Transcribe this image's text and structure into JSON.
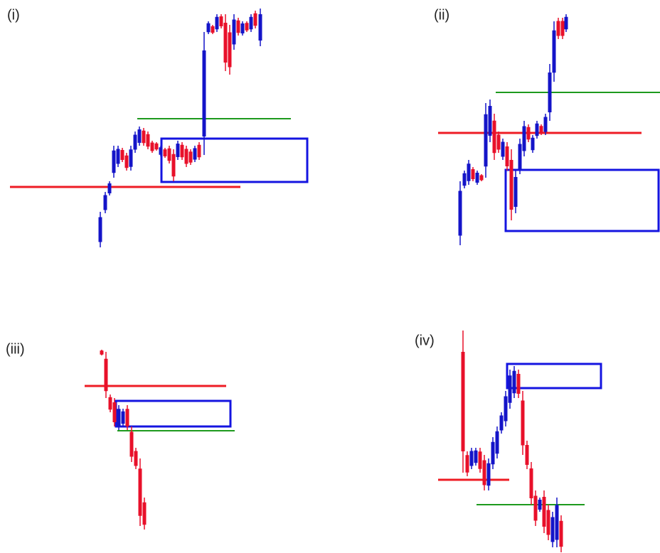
{
  "panels": [
    {
      "label": "(i)"
    },
    {
      "label": "(ii)"
    },
    {
      "label": "(iii)"
    },
    {
      "label": "(iv)"
    }
  ]
}
